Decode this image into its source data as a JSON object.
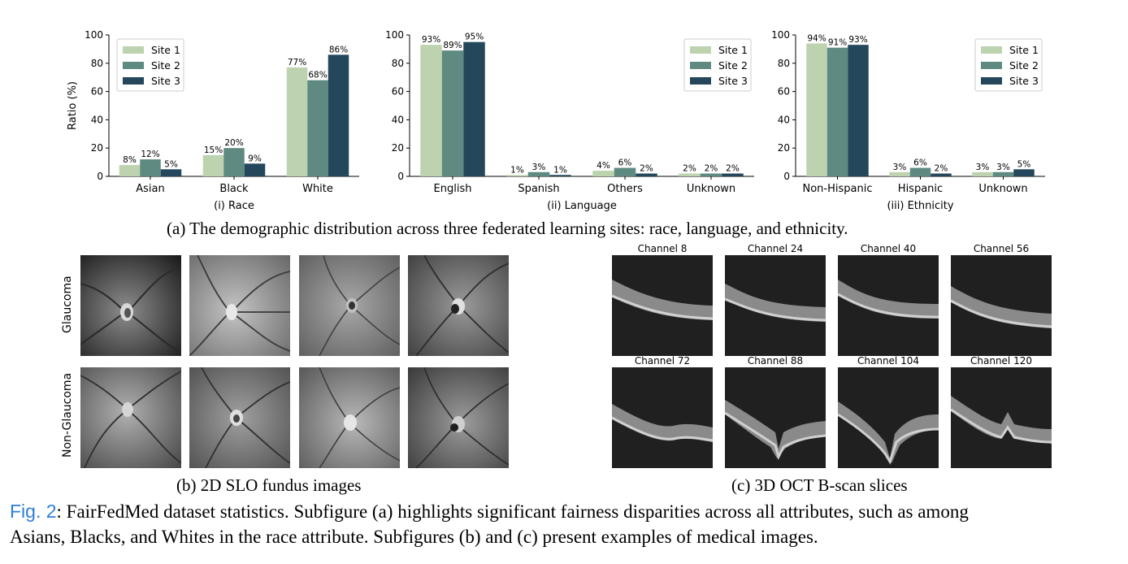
{
  "chart_data": [
    {
      "type": "bar",
      "xlabel": "(i) Race",
      "ylabel": "Ratio (%)",
      "ylim": [
        0,
        100
      ],
      "yticks": [
        0,
        20,
        40,
        60,
        80,
        100
      ],
      "categories": [
        "Asian",
        "Black",
        "White"
      ],
      "legend_position": "top-left",
      "series": [
        {
          "name": "Site 1",
          "values": [
            8,
            15,
            77
          ],
          "labels": [
            "8%",
            "15%",
            "77%"
          ]
        },
        {
          "name": "Site 2",
          "values": [
            12,
            20,
            68
          ],
          "labels": [
            "12%",
            "20%",
            "68%"
          ]
        },
        {
          "name": "Site 3",
          "values": [
            5,
            9,
            86
          ],
          "labels": [
            "5%",
            "9%",
            "86%"
          ]
        }
      ]
    },
    {
      "type": "bar",
      "xlabel": "(ii) Language",
      "ylabel": "",
      "ylim": [
        0,
        100
      ],
      "yticks": [
        0,
        20,
        40,
        60,
        80,
        100
      ],
      "categories": [
        "English",
        "Spanish",
        "Others",
        "Unknown"
      ],
      "legend_position": "top-right",
      "series": [
        {
          "name": "Site 1",
          "values": [
            93,
            1,
            4,
            2
          ],
          "labels": [
            "93%",
            "1%",
            "4%",
            "2%"
          ]
        },
        {
          "name": "Site 2",
          "values": [
            89,
            3,
            6,
            2
          ],
          "labels": [
            "89%",
            "3%",
            "6%",
            "2%"
          ]
        },
        {
          "name": "Site 3",
          "values": [
            95,
            1,
            2,
            2
          ],
          "labels": [
            "95%",
            "1%",
            "2%",
            "2%"
          ]
        }
      ]
    },
    {
      "type": "bar",
      "xlabel": "(iii) Ethnicity",
      "ylabel": "",
      "ylim": [
        0,
        100
      ],
      "yticks": [
        0,
        20,
        40,
        60,
        80,
        100
      ],
      "categories": [
        "Non-Hispanic",
        "Hispanic",
        "Unknown"
      ],
      "legend_position": "top-right",
      "series": [
        {
          "name": "Site 1",
          "values": [
            94,
            3,
            3
          ],
          "labels": [
            "94%",
            "3%",
            "3%"
          ]
        },
        {
          "name": "Site 2",
          "values": [
            91,
            6,
            3
          ],
          "labels": [
            "91%",
            "6%",
            "3%"
          ]
        },
        {
          "name": "Site 3",
          "values": [
            93,
            2,
            5
          ],
          "labels": [
            "93%",
            "2%",
            "5%"
          ]
        }
      ]
    }
  ],
  "colors": {
    "site1": "#bdd3b0",
    "site2": "#5e8a82",
    "site3": "#24475c",
    "figref": "#2f7ed8"
  },
  "captions": {
    "a": "(a) The demographic distribution across three federated learning sites: race, language, and ethnicity.",
    "b": "(b) 2D SLO fundus images",
    "c": "(c) 3D OCT B-scan slices",
    "fig_ref": "Fig. 2",
    "fig_line1": ": FairFedMed dataset statistics. Subfigure (a) highlights significant fairness disparities across all attributes, such as among",
    "fig_line2": "Asians, Blacks, and Whites in the race attribute. Subfigures (b) and (c) present examples of medical images."
  },
  "slo": {
    "row_labels": [
      "Glaucoma",
      "Non-Glaucoma"
    ]
  },
  "oct": {
    "titles": [
      "Channel 8",
      "Channel 24",
      "Channel 40",
      "Channel 56",
      "Channel 72",
      "Channel 88",
      "Channel 104",
      "Channel 120"
    ]
  }
}
